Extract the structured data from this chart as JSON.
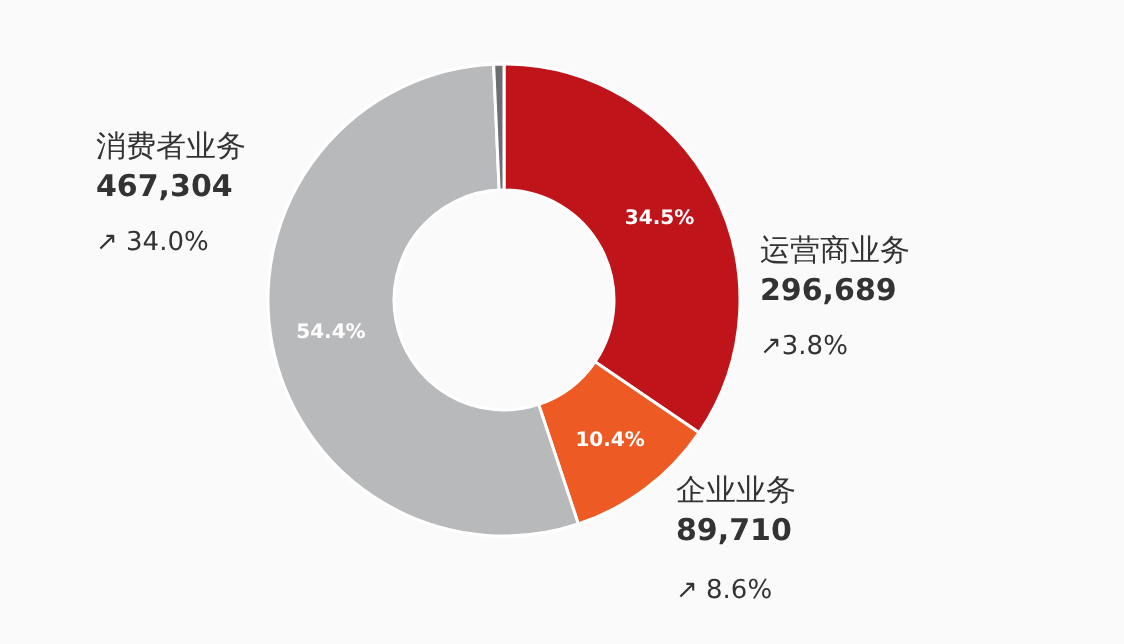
{
  "chart_data": {
    "type": "donut",
    "categories": [
      "运营商业务",
      "企业业务",
      "消费者业务",
      null
    ],
    "values": [
      34.5,
      10.4,
      54.4,
      0.7
    ],
    "colors": [
      "#c0141b",
      "#ee5a24",
      "#b8b9bb",
      "#6d6e70"
    ],
    "value_labels": [
      "34.5%",
      "10.4%",
      "54.4%",
      null
    ],
    "annotations": [
      "296,689",
      "↗3.8%",
      "89,710",
      "↗ 8.6%",
      "467,304",
      "↗ 34.0%"
    ]
  }
}
